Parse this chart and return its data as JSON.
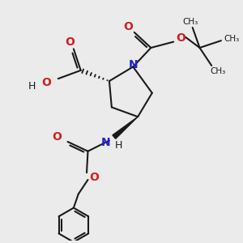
{
  "bg_color": "#ebebeb",
  "bond_color": "#1a1a1a",
  "N_color": "#2222cc",
  "O_color": "#cc2222",
  "lw": 1.5,
  "figsize": [
    3.0,
    3.0
  ],
  "dpi": 100,
  "xlim": [
    0,
    10
  ],
  "ylim": [
    0,
    10
  ]
}
